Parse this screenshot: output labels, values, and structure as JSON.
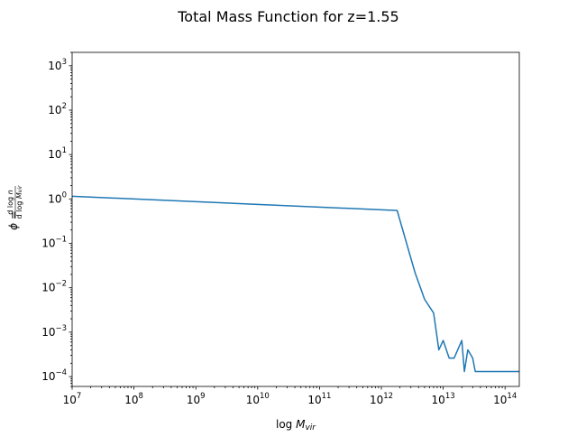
{
  "chart_data": {
    "type": "line",
    "title": "Total Mass Function for z=1.55",
    "xlabel": "log M_vir",
    "ylabel": "φ = dlog n / dlog M_vir",
    "xscale": "log",
    "yscale": "log",
    "xlim": [
      10000000.0,
      170000000000000.0
    ],
    "ylim": [
      6e-05,
      2000.0
    ],
    "grid": false,
    "x_tick_labels": [
      {
        "base": "10",
        "exp": "7",
        "value": 10000000.0
      },
      {
        "base": "10",
        "exp": "8",
        "value": 100000000.0
      },
      {
        "base": "10",
        "exp": "9",
        "value": 1000000000.0
      },
      {
        "base": "10",
        "exp": "10",
        "value": 10000000000.0
      },
      {
        "base": "10",
        "exp": "11",
        "value": 100000000000.0
      },
      {
        "base": "10",
        "exp": "12",
        "value": 1000000000000.0
      },
      {
        "base": "10",
        "exp": "13",
        "value": 10000000000000.0
      },
      {
        "base": "10",
        "exp": "14",
        "value": 100000000000000.0
      }
    ],
    "y_tick_labels": [
      {
        "base": "10",
        "exp": "−4",
        "value": 0.0001
      },
      {
        "base": "10",
        "exp": "−3",
        "value": 0.001
      },
      {
        "base": "10",
        "exp": "−2",
        "value": 0.01
      },
      {
        "base": "10",
        "exp": "−1",
        "value": 0.1
      },
      {
        "base": "10",
        "exp": "0",
        "value": 1
      },
      {
        "base": "10",
        "exp": "1",
        "value": 10
      },
      {
        "base": "10",
        "exp": "2",
        "value": 100
      },
      {
        "base": "10",
        "exp": "3",
        "value": 1000
      }
    ],
    "series": [
      {
        "color": "#1f77b4",
        "x": [
          10000000.0,
          1800000000000.0,
          3500000000000.0,
          5000000000000.0,
          7000000000000.0,
          8500000000000.0,
          10000000000000.0,
          12500000000000.0,
          15000000000000.0,
          20000000000000.0,
          22000000000000.0,
          25000000000000.0,
          30000000000000.0,
          33000000000000.0,
          170000000000000.0
        ],
        "y": [
          1.15,
          0.55,
          0.022,
          0.0055,
          0.0027,
          0.0004,
          0.00065,
          0.00026,
          0.00026,
          0.00065,
          0.00013,
          0.0004,
          0.00026,
          0.00013,
          0.00013
        ]
      }
    ]
  }
}
